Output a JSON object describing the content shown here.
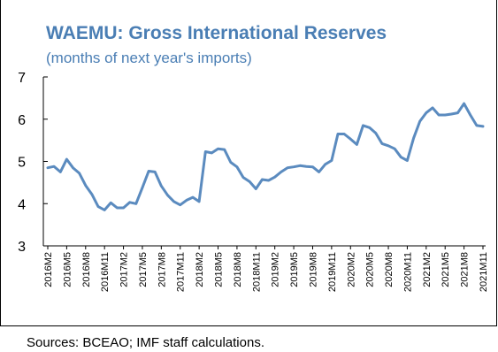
{
  "chart_data": {
    "type": "line",
    "title": "WAEMU: Gross International Reserves",
    "subtitle": "(months of next year's imports)",
    "xlabel": "",
    "ylabel": "",
    "ylim": [
      3,
      7
    ],
    "yticks": [
      3,
      4,
      5,
      6,
      7
    ],
    "grid": false,
    "x_tick_labels": [
      "2016M2",
      "2016M5",
      "2016M8",
      "2016M11",
      "2017M2",
      "2017M5",
      "2017M8",
      "2017M11",
      "2018M2",
      "2018M5",
      "2018M8",
      "2018M11",
      "2019M2",
      "2019M5",
      "2019M8",
      "2019M11",
      "2020M2",
      "2020M5",
      "2020M8",
      "2020M11",
      "2021M2",
      "2021M5",
      "2021M8",
      "2021M11"
    ],
    "series": [
      {
        "color": "#5b8bbf",
        "x": [
          "2016M2",
          "2016M3",
          "2016M4",
          "2016M5",
          "2016M6",
          "2016M7",
          "2016M8",
          "2016M9",
          "2016M10",
          "2016M11",
          "2016M12",
          "2017M1",
          "2017M2",
          "2017M3",
          "2017M4",
          "2017M5",
          "2017M6",
          "2017M7",
          "2017M8",
          "2017M9",
          "2017M10",
          "2017M11",
          "2017M12",
          "2018M1",
          "2018M2",
          "2018M3",
          "2018M4",
          "2018M5",
          "2018M6",
          "2018M7",
          "2018M8",
          "2018M9",
          "2018M10",
          "2018M11",
          "2018M12",
          "2019M1",
          "2019M2",
          "2019M3",
          "2019M4",
          "2019M5",
          "2019M6",
          "2019M7",
          "2019M8",
          "2019M9",
          "2019M10",
          "2019M11",
          "2019M12",
          "2020M1",
          "2020M2",
          "2020M3",
          "2020M4",
          "2020M5",
          "2020M6",
          "2020M7",
          "2020M8",
          "2020M9",
          "2020M10",
          "2020M11",
          "2020M12",
          "2021M1",
          "2021M2",
          "2021M3",
          "2021M4",
          "2021M5",
          "2021M6",
          "2021M7",
          "2021M8",
          "2021M9",
          "2021M10",
          "2021M11"
        ],
        "values": [
          4.85,
          4.88,
          4.75,
          5.05,
          4.85,
          4.72,
          4.43,
          4.22,
          3.93,
          3.85,
          4.02,
          3.9,
          3.9,
          4.03,
          4.0,
          4.38,
          4.77,
          4.75,
          4.42,
          4.2,
          4.05,
          3.97,
          4.08,
          4.15,
          4.05,
          5.23,
          5.2,
          5.3,
          5.28,
          4.98,
          4.87,
          4.62,
          4.52,
          4.35,
          4.57,
          4.55,
          4.63,
          4.75,
          4.85,
          4.87,
          4.9,
          4.88,
          4.87,
          4.75,
          4.93,
          5.02,
          5.65,
          5.65,
          5.53,
          5.4,
          5.85,
          5.8,
          5.67,
          5.42,
          5.37,
          5.3,
          5.1,
          5.02,
          5.55,
          5.95,
          6.15,
          6.27,
          6.1,
          6.1,
          6.12,
          6.15,
          6.37,
          6.1,
          5.85,
          5.83
        ]
      }
    ]
  },
  "source": "Sources: BCEAO; IMF staff calculations."
}
